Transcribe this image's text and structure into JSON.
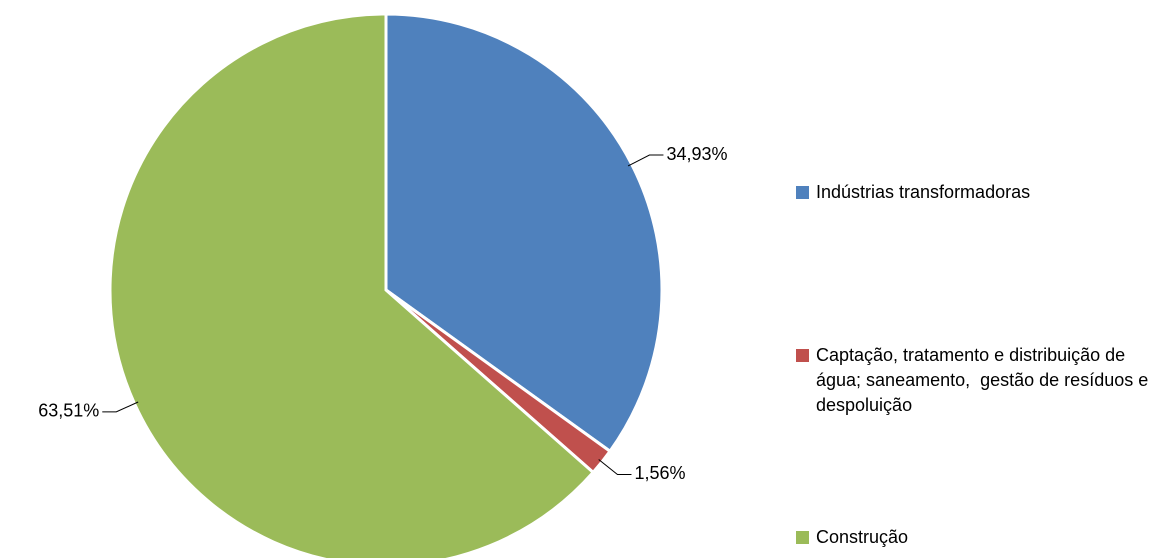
{
  "chart_data": {
    "type": "pie",
    "categories": [
      "Indústrias transformadoras",
      "Captação, tratamento e distribuição de água; saneamento,  gestão de resíduos e despoluição",
      "Construção"
    ],
    "values": [
      34.93,
      1.56,
      63.51
    ],
    "value_labels": [
      "34,93%",
      "1,56%",
      "63,51%"
    ],
    "colors": [
      "#4f81bd",
      "#c0504d",
      "#9bbb59"
    ],
    "legend": "right"
  }
}
